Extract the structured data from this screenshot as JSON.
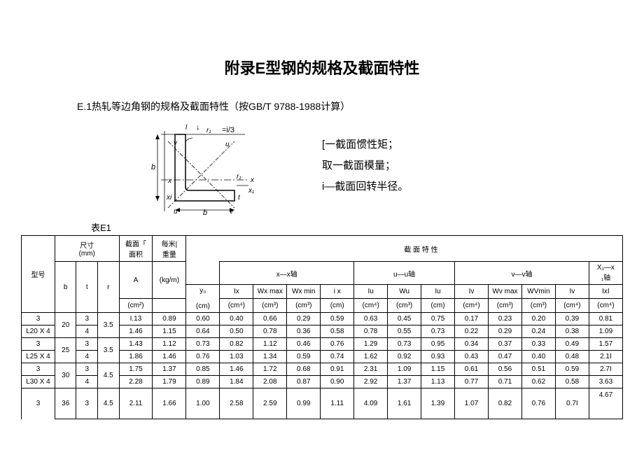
{
  "title": "附录E型钢的规格及截面特性",
  "subtitle": "E.1热轧等边角钢的规格及截面特性（按GB/T 9788-1988计算）",
  "diagram_label_eq": "=i/3",
  "legend": {
    "l1": "[一截面惯性矩；",
    "l2": "取一截面模量；",
    "l3": "i—截面回转半径。"
  },
  "table_label": "表E1",
  "table": {
    "head": {
      "size": "尺寸",
      "size_unit": "(mm)",
      "area": "截面「",
      "area2": "面积",
      "permeter": "每米|",
      "weight": "重量",
      "y0": "y₀",
      "section_props": "截   面  特   性",
      "model": "型号",
      "b": "b",
      "t": "t",
      "r": "r",
      "A": "A",
      "A_u": "(cm²)",
      "kg": "(kg/m)",
      "cm": "(cm)",
      "xx": "x—x轴",
      "uu": "u—u轴",
      "vv": "v—v轴",
      "x1x": "X₁—x",
      "x1x2": "₁轴",
      "Ix": "Ix",
      "Ix_u": "(cm⁴)",
      "Wxmax": "Wx max",
      "Wxmax_u": "(cm³)",
      "Wxmin": "Wx min",
      "Wxmin_u": "(cm³)",
      "ix": "i x",
      "ix_u": "(cm)",
      "Iu": "Iu",
      "Iu_u": "(cm⁴)",
      "Wu": "Wu",
      "Wu_u": "(cm³)",
      "iu": "Iu",
      "iu_u": "(cm)",
      "Iv": "Iv",
      "Iv_u": "(cm⁴)",
      "Wvmax": "Wv max",
      "Wvmax_u": "(cm³)",
      "Wvmin": "WVmin",
      "Wvmin_u": "(cm³)",
      "iv": "Iv",
      "iv_u": "(cm⁴)",
      "Ix1": "IxI",
      "Ix1_u": "(cm⁴)"
    },
    "rows": [
      {
        "m3": "3",
        "model": "L20 X 4",
        "b": "20",
        "t": "3",
        "r": "3.5",
        "A": "I.13",
        "kg": "0.89",
        "y0": "0.60",
        "Ix": "0.40",
        "Wxmax": "0.66",
        "Wxmin": "0.29",
        "ix": "0.59",
        "Iu": "0.63",
        "Wu": "0.45",
        "iu": "0.75",
        "Iv": "0.17",
        "Wvmax": "0.23",
        "Wvmin": "0.20",
        "iv": "0.39",
        "Ix1": "0.81"
      },
      {
        "m3": "",
        "model": "",
        "b": "",
        "t": "4",
        "r": "",
        "A": "1.46",
        "kg": "1.15",
        "y0": "0.64",
        "Ix": "0.50",
        "Wxmax": "0.78",
        "Wxmin": "0.36",
        "ix": "0.58",
        "Iu": "0.78",
        "Wu": "0.55",
        "iu": "0.73",
        "Iv": "0.22",
        "Wvmax": "0.29",
        "Wvmin": "0.24",
        "iv": "0.38",
        "Ix1": "1.09"
      },
      {
        "m3": "3",
        "model": "L25 X 4",
        "b": "25",
        "t": "3",
        "r": "3.5",
        "A": "1.43",
        "kg": "1.12",
        "y0": "0.73",
        "Ix": "0.82",
        "Wxmax": "1.12",
        "Wxmin": "0.46",
        "ix": "0.76",
        "Iu": "1.29",
        "Wu": "0.73",
        "iu": "0.95",
        "Iv": "0.34",
        "Wvmax": "0.37",
        "Wvmin": "0.33",
        "iv": "0.49",
        "Ix1": "1.57"
      },
      {
        "m3": "",
        "model": "",
        "b": "",
        "t": "4",
        "r": "",
        "A": "1.86",
        "kg": "1.46",
        "y0": "0.76",
        "Ix": "1.03",
        "Wxmax": "1.34",
        "Wxmin": "0.59",
        "ix": "0.74",
        "Iu": "1.62",
        "Wu": "0.92",
        "iu": "0.93",
        "Iv": "0.43",
        "Wvmax": "0.47",
        "Wvmin": "0.40",
        "iv": "0.48",
        "Ix1": "2.1I"
      },
      {
        "m3": "3",
        "model": "L30 X 4",
        "b": "30",
        "t": "3",
        "r": "4.5",
        "A": "1.75",
        "kg": "1.37",
        "y0": "0.85",
        "Ix": "1.46",
        "Wxmax": "1.72",
        "Wxmin": "0.68",
        "ix": "0.91",
        "Iu": "2.31",
        "Wu": "1.09",
        "iu": "1.15",
        "Iv": "0.61",
        "Wvmax": "0.56",
        "Wvmin": "0.51",
        "iv": "0.59",
        "Ix1": "2.7I"
      },
      {
        "m3": "",
        "model": "",
        "b": "",
        "t": "4",
        "r": "",
        "A": "2.28",
        "kg": "1.79",
        "y0": "0.89",
        "Ix": "1.84",
        "Wxmax": "2.08",
        "Wxmin": "0.87",
        "ix": "0.90",
        "Iu": "2.92",
        "Wu": "1.37",
        "iu": "1.13",
        "Iv": "0.77",
        "Wvmax": "0.71",
        "Wvmin": "0.62",
        "iv": "0.58",
        "Ix1": "3.63"
      },
      {
        "m3": "3",
        "model": "",
        "b": "36",
        "t": "3",
        "r": "4.5",
        "A": "2.11",
        "kg": "1.66",
        "y0": "1.00",
        "Ix": "2.58",
        "Wxmax": "2.59",
        "Wxmin": "0.99",
        "ix": "1.11",
        "Iu": "4.09",
        "Wu": "1.61",
        "iu": "1.39",
        "Iv": "1.07",
        "Wvmax": "0.82",
        "Wvmin": "0.76",
        "iv": "0.7I",
        "Ix1": "4.67"
      }
    ]
  },
  "diagram": {
    "stroke": "#000",
    "fill": "none"
  }
}
